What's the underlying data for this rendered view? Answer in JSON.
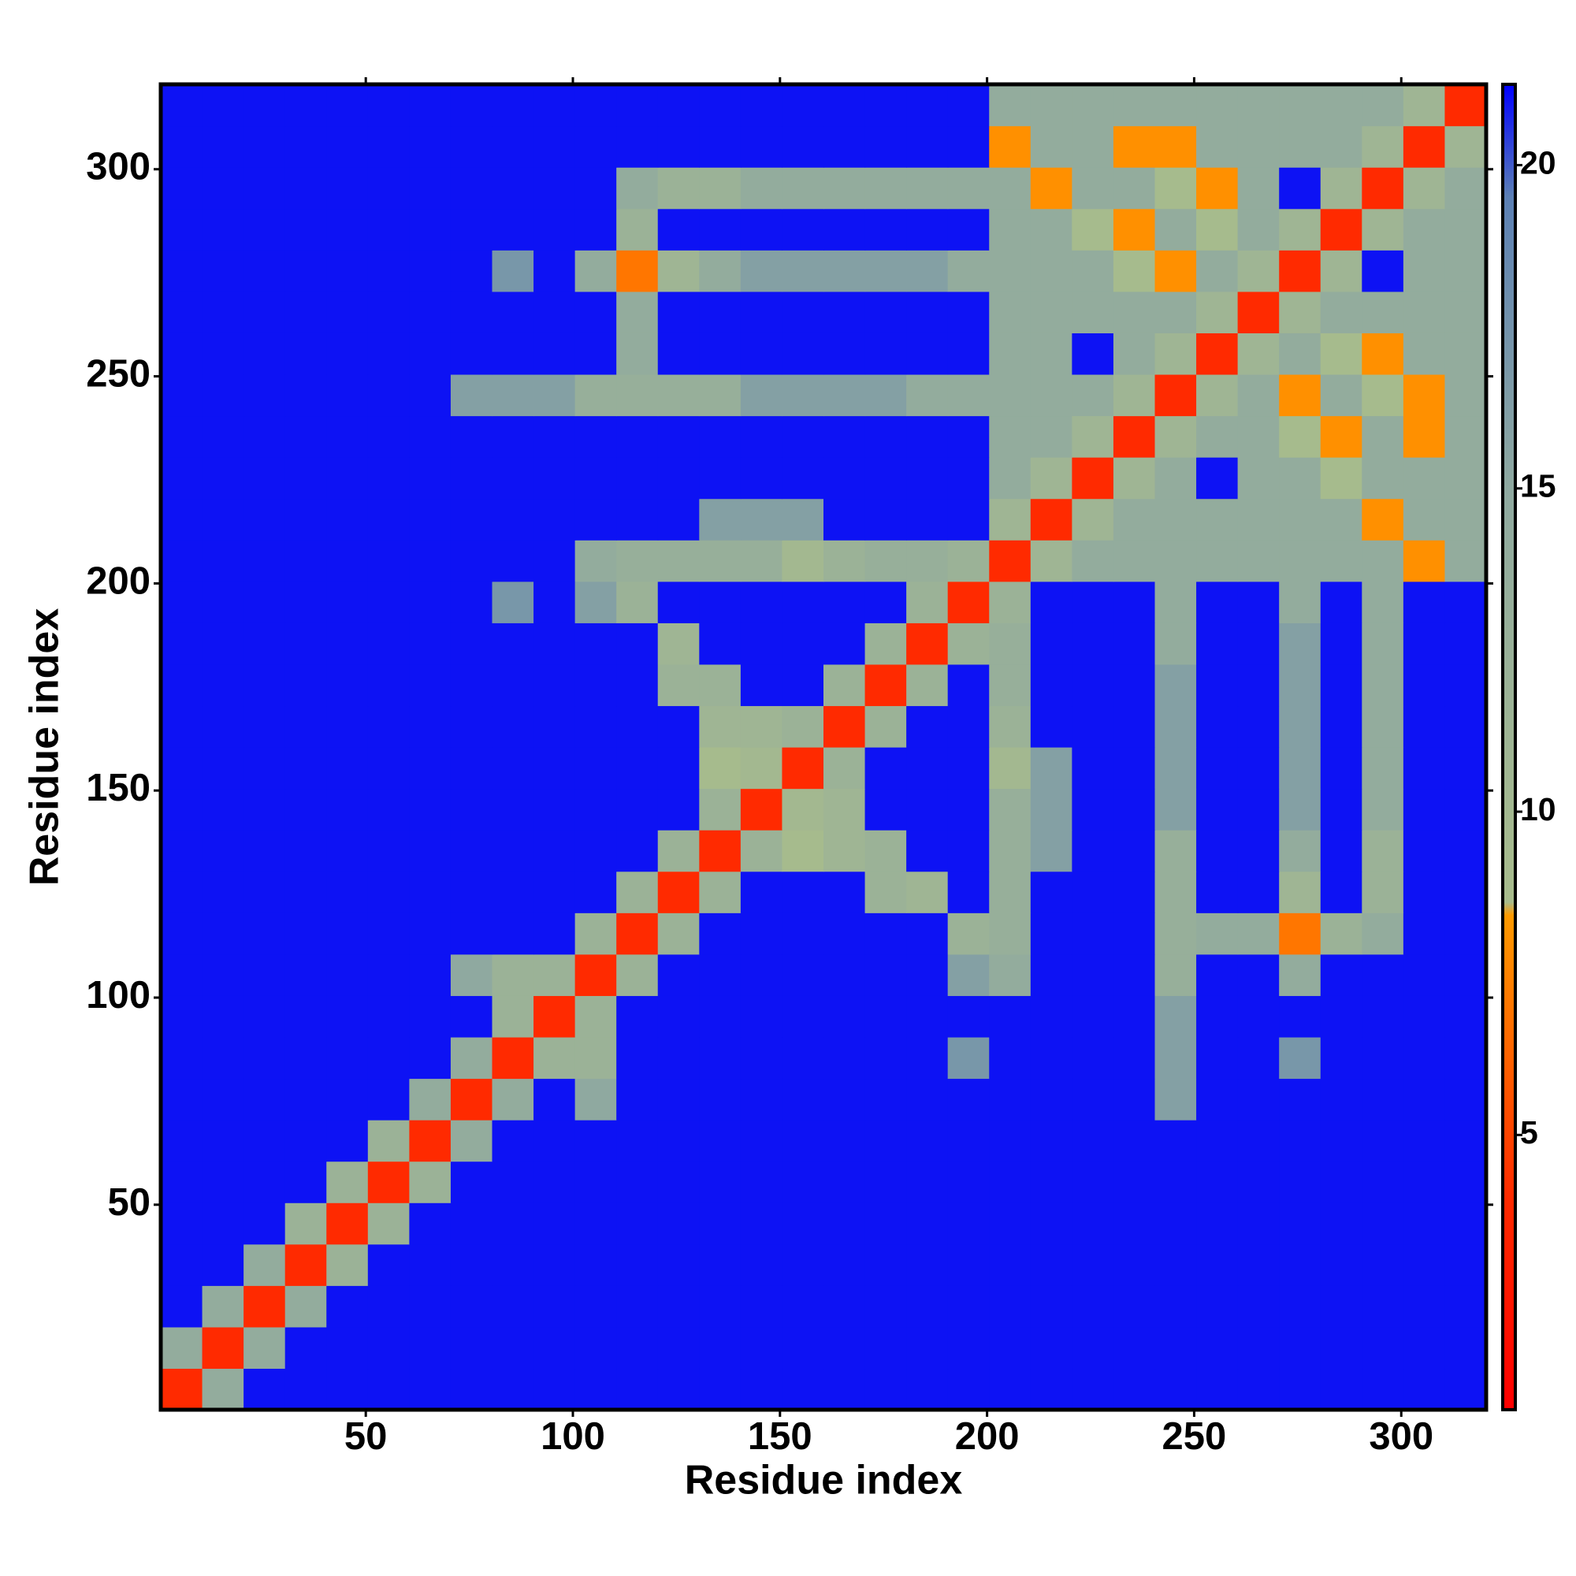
{
  "chart_data": {
    "type": "heatmap",
    "xlabel": "Residue index",
    "ylabel": "Residue index",
    "xlim": [
      0.5,
      320.5
    ],
    "ylim": [
      0.5,
      320.5
    ],
    "xticks": [
      50,
      100,
      150,
      200,
      250,
      300
    ],
    "yticks": [
      50,
      100,
      150,
      200,
      250,
      300
    ],
    "zlim": [
      0.75,
      21.25
    ],
    "zticks": [
      5,
      10,
      15,
      20
    ],
    "colorscale": [
      [
        0.75,
        "#ff0000"
      ],
      [
        4,
        "#ff2a00"
      ],
      [
        8.4,
        "#ff9a00"
      ],
      [
        8.6,
        "#a8bc8c"
      ],
      [
        15,
        "#8fa9a0"
      ],
      [
        19.5,
        "#5c80b4"
      ],
      [
        21.25,
        "#0000ff"
      ]
    ],
    "z": [
      [
        4,
        14,
        21,
        21,
        21,
        21,
        21,
        21,
        21,
        21,
        21,
        21,
        21,
        21,
        21,
        21,
        21,
        21,
        21,
        21,
        21,
        21,
        21,
        21,
        21,
        21,
        21,
        21,
        21,
        21,
        21,
        21
      ],
      [
        14,
        4,
        14,
        21,
        21,
        21,
        21,
        21,
        21,
        21,
        21,
        21,
        21,
        21,
        21,
        21,
        21,
        21,
        21,
        21,
        21,
        21,
        21,
        21,
        21,
        21,
        21,
        21,
        21,
        21,
        21,
        21
      ],
      [
        21,
        14,
        4,
        14,
        21,
        21,
        21,
        21,
        21,
        21,
        21,
        21,
        21,
        21,
        21,
        21,
        21,
        21,
        21,
        21,
        21,
        21,
        21,
        21,
        21,
        21,
        21,
        21,
        21,
        21,
        21,
        21
      ],
      [
        21,
        21,
        14,
        4,
        12,
        21,
        21,
        21,
        21,
        21,
        21,
        21,
        21,
        21,
        21,
        21,
        21,
        21,
        21,
        21,
        21,
        21,
        21,
        21,
        21,
        21,
        21,
        21,
        21,
        21,
        21,
        21
      ],
      [
        21,
        21,
        21,
        12,
        4,
        12,
        21,
        21,
        21,
        21,
        21,
        21,
        21,
        21,
        21,
        21,
        21,
        21,
        21,
        21,
        21,
        21,
        21,
        21,
        21,
        21,
        21,
        21,
        21,
        21,
        21,
        21
      ],
      [
        21,
        21,
        21,
        21,
        12,
        4,
        12,
        21,
        21,
        21,
        21,
        21,
        21,
        21,
        21,
        21,
        21,
        21,
        21,
        21,
        21,
        21,
        21,
        21,
        21,
        21,
        21,
        21,
        21,
        21,
        21,
        21
      ],
      [
        21,
        21,
        21,
        21,
        21,
        12,
        4,
        14,
        21,
        21,
        21,
        21,
        21,
        21,
        21,
        21,
        21,
        21,
        21,
        21,
        21,
        21,
        21,
        21,
        21,
        21,
        21,
        21,
        21,
        21,
        21,
        21
      ],
      [
        21,
        21,
        21,
        21,
        21,
        21,
        14,
        4,
        14,
        21,
        15,
        21,
        21,
        21,
        21,
        21,
        21,
        21,
        21,
        21,
        21,
        21,
        21,
        21,
        16,
        21,
        21,
        21,
        21,
        21,
        21,
        21
      ],
      [
        21,
        21,
        21,
        21,
        21,
        21,
        21,
        14,
        4,
        12,
        12,
        21,
        21,
        21,
        21,
        21,
        21,
        21,
        21,
        17,
        21,
        21,
        21,
        21,
        16,
        21,
        21,
        17,
        21,
        21,
        21,
        21
      ],
      [
        21,
        21,
        21,
        21,
        21,
        21,
        21,
        21,
        12,
        4,
        12,
        21,
        21,
        21,
        21,
        21,
        21,
        21,
        21,
        21,
        21,
        21,
        21,
        21,
        16,
        21,
        21,
        21,
        21,
        21,
        21,
        21
      ],
      [
        21,
        21,
        21,
        21,
        21,
        21,
        21,
        15,
        12,
        12,
        4,
        12,
        21,
        21,
        21,
        21,
        21,
        21,
        21,
        16,
        14,
        21,
        21,
        21,
        13,
        21,
        21,
        14,
        21,
        21,
        21,
        21
      ],
      [
        21,
        21,
        21,
        21,
        21,
        21,
        21,
        21,
        21,
        21,
        12,
        4,
        12,
        21,
        21,
        21,
        21,
        21,
        21,
        12,
        13,
        21,
        21,
        21,
        13,
        14,
        14,
        7,
        12,
        14,
        21,
        21
      ],
      [
        21,
        21,
        21,
        21,
        21,
        21,
        21,
        21,
        21,
        21,
        21,
        12,
        4,
        12,
        21,
        21,
        21,
        12,
        11,
        21,
        13,
        21,
        21,
        21,
        13,
        21,
        21,
        11,
        21,
        12,
        21,
        21
      ],
      [
        21,
        21,
        21,
        21,
        21,
        21,
        21,
        21,
        21,
        21,
        21,
        21,
        12,
        4,
        12,
        9,
        11,
        12,
        21,
        21,
        13,
        16,
        21,
        21,
        13,
        21,
        21,
        14,
        21,
        12,
        21,
        21
      ],
      [
        21,
        21,
        21,
        21,
        21,
        21,
        21,
        21,
        21,
        21,
        21,
        21,
        21,
        12,
        4,
        10,
        11,
        21,
        21,
        21,
        13,
        16,
        21,
        21,
        16,
        21,
        21,
        16,
        21,
        14,
        21,
        21
      ],
      [
        21,
        21,
        21,
        21,
        21,
        21,
        21,
        21,
        21,
        21,
        21,
        21,
        21,
        9,
        10,
        4,
        12,
        21,
        21,
        21,
        10,
        16,
        21,
        21,
        16,
        21,
        21,
        16,
        21,
        14,
        21,
        21
      ],
      [
        21,
        21,
        21,
        21,
        21,
        21,
        21,
        21,
        21,
        21,
        21,
        21,
        21,
        11,
        11,
        12,
        4,
        12,
        21,
        21,
        12,
        21,
        21,
        21,
        16,
        21,
        21,
        16,
        21,
        14,
        21,
        21
      ],
      [
        21,
        21,
        21,
        21,
        21,
        21,
        21,
        21,
        21,
        21,
        21,
        21,
        12,
        12,
        21,
        21,
        12,
        4,
        12,
        21,
        13,
        21,
        21,
        21,
        16,
        21,
        21,
        16,
        21,
        14,
        21,
        21
      ],
      [
        21,
        21,
        21,
        21,
        21,
        21,
        21,
        21,
        21,
        21,
        21,
        21,
        11,
        21,
        21,
        21,
        21,
        12,
        4,
        12,
        13,
        21,
        21,
        21,
        14,
        21,
        21,
        16,
        21,
        14,
        21,
        21
      ],
      [
        21,
        21,
        21,
        21,
        21,
        21,
        21,
        21,
        17,
        21,
        16,
        12,
        21,
        21,
        21,
        21,
        21,
        21,
        12,
        4,
        12,
        21,
        21,
        21,
        14,
        21,
        21,
        14,
        21,
        14,
        21,
        21
      ],
      [
        21,
        21,
        21,
        21,
        21,
        21,
        21,
        21,
        21,
        21,
        14,
        13,
        13,
        13,
        13,
        10,
        12,
        13,
        13,
        12,
        4,
        11,
        14,
        14,
        14,
        14,
        14,
        14,
        14,
        14,
        8,
        14
      ],
      [
        21,
        21,
        21,
        21,
        21,
        21,
        21,
        21,
        21,
        21,
        21,
        21,
        21,
        16,
        16,
        16,
        21,
        21,
        21,
        21,
        11,
        4,
        11,
        14,
        14,
        14,
        14,
        14,
        14,
        8,
        14,
        14
      ],
      [
        21,
        21,
        21,
        21,
        21,
        21,
        21,
        21,
        21,
        21,
        21,
        21,
        21,
        21,
        21,
        21,
        21,
        21,
        21,
        21,
        14,
        11,
        4,
        11,
        14,
        21,
        14,
        14,
        9,
        14,
        14,
        14
      ],
      [
        21,
        21,
        21,
        21,
        21,
        21,
        21,
        21,
        21,
        21,
        21,
        21,
        21,
        21,
        21,
        21,
        21,
        21,
        21,
        21,
        14,
        14,
        11,
        4,
        11,
        14,
        14,
        9,
        8,
        14,
        8,
        14
      ],
      [
        21,
        21,
        21,
        21,
        21,
        21,
        21,
        16,
        16,
        16,
        13,
        13,
        13,
        13,
        16,
        16,
        16,
        16,
        14,
        14,
        14,
        14,
        14,
        11,
        4,
        11,
        14,
        8,
        14,
        9,
        8,
        14
      ],
      [
        21,
        21,
        21,
        21,
        21,
        21,
        21,
        21,
        21,
        21,
        21,
        14,
        21,
        21,
        21,
        21,
        21,
        21,
        21,
        21,
        14,
        14,
        21,
        14,
        11,
        4,
        11,
        14,
        9,
        8,
        14,
        14
      ],
      [
        21,
        21,
        21,
        21,
        21,
        21,
        21,
        21,
        21,
        21,
        21,
        14,
        21,
        21,
        21,
        21,
        21,
        21,
        21,
        21,
        14,
        14,
        14,
        14,
        14,
        11,
        4,
        11,
        14,
        14,
        14,
        14
      ],
      [
        21,
        21,
        21,
        21,
        21,
        21,
        21,
        21,
        17,
        21,
        14,
        7,
        11,
        14,
        16,
        16,
        16,
        16,
        16,
        14,
        14,
        14,
        14,
        9,
        8,
        14,
        11,
        4,
        11,
        21,
        14,
        14
      ],
      [
        21,
        21,
        21,
        21,
        21,
        21,
        21,
        21,
        21,
        21,
        21,
        12,
        21,
        21,
        21,
        21,
        21,
        21,
        21,
        21,
        14,
        14,
        9,
        8,
        14,
        9,
        14,
        11,
        4,
        11,
        14,
        14
      ],
      [
        21,
        21,
        21,
        21,
        21,
        21,
        21,
        21,
        21,
        21,
        21,
        14,
        12,
        12,
        14,
        14,
        14,
        14,
        14,
        14,
        14,
        8,
        14,
        14,
        9,
        8,
        14,
        21,
        11,
        4,
        11,
        14
      ],
      [
        21,
        21,
        21,
        21,
        21,
        21,
        21,
        21,
        21,
        21,
        21,
        21,
        21,
        21,
        21,
        21,
        21,
        21,
        21,
        21,
        8,
        14,
        14,
        8,
        8,
        14,
        14,
        14,
        14,
        11,
        4,
        11
      ],
      [
        21,
        21,
        21,
        21,
        21,
        21,
        21,
        21,
        21,
        21,
        21,
        21,
        21,
        21,
        21,
        21,
        21,
        21,
        21,
        21,
        14,
        14,
        14,
        14,
        14,
        14,
        14,
        14,
        14,
        14,
        11,
        4
      ]
    ]
  }
}
